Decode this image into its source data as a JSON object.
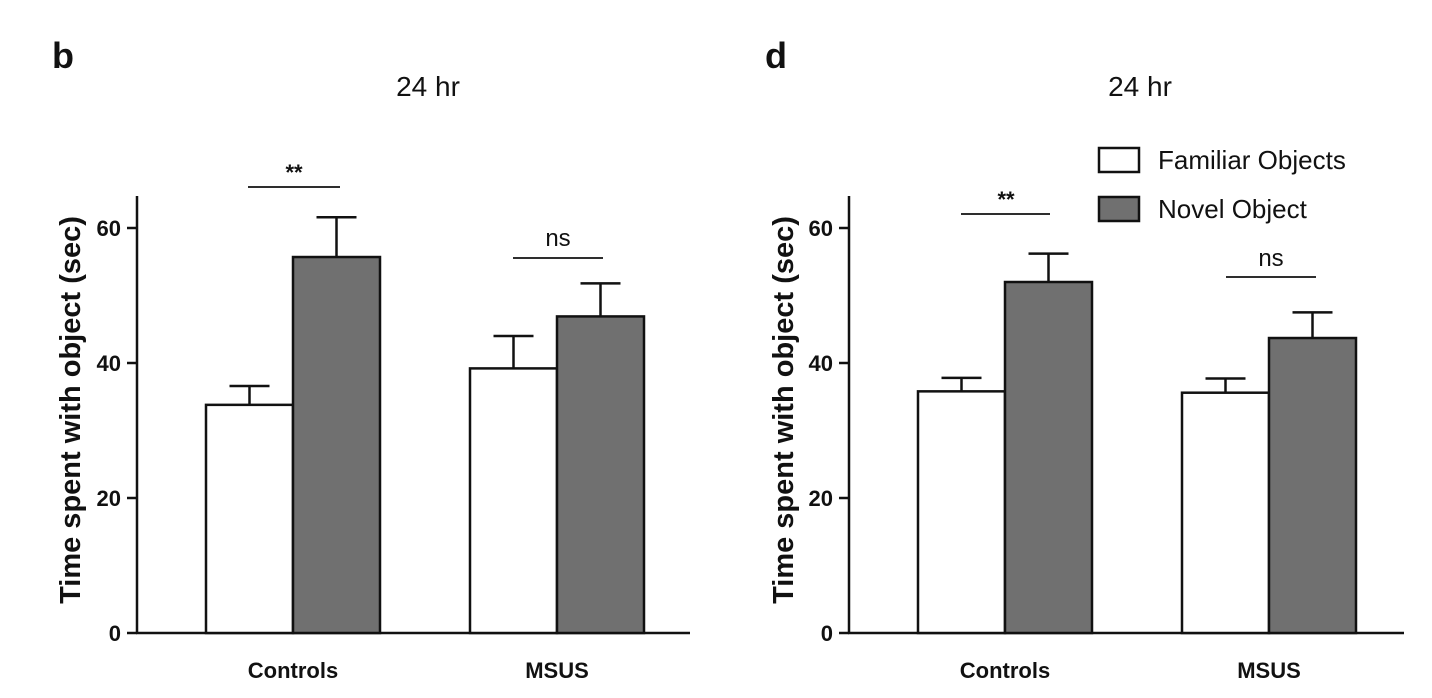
{
  "legend": {
    "entries": [
      {
        "label": "Familiar Objects",
        "color": "#ffffff"
      },
      {
        "label": "Novel Object",
        "color": "#707070"
      }
    ]
  },
  "chart_data": [
    {
      "panel": "b",
      "type": "bar",
      "title": "24 hr",
      "ylabel": "Time spent with object (sec)",
      "xlabel": "",
      "ylim": [
        0,
        65
      ],
      "yticks": [
        0,
        20,
        40,
        60
      ],
      "categories": [
        "Controls",
        "MSUS"
      ],
      "series": [
        {
          "name": "Familiar Objects",
          "color": "#ffffff",
          "values": [
            33.8,
            39.2
          ],
          "error": [
            2.8,
            4.8
          ]
        },
        {
          "name": "Novel Object",
          "color": "#707070",
          "values": [
            55.7,
            46.9
          ],
          "error": [
            5.9,
            4.9
          ]
        }
      ],
      "annotations": [
        "**",
        "ns"
      ]
    },
    {
      "panel": "d",
      "type": "bar",
      "title": "24 hr",
      "ylabel": "Time spent with object (sec)",
      "xlabel": "",
      "ylim": [
        0,
        65
      ],
      "yticks": [
        0,
        20,
        40,
        60
      ],
      "categories": [
        "Controls",
        "MSUS"
      ],
      "series": [
        {
          "name": "Familiar Objects",
          "color": "#ffffff",
          "values": [
            35.8,
            35.6
          ],
          "error": [
            2.0,
            2.1
          ]
        },
        {
          "name": "Novel Object",
          "color": "#707070",
          "values": [
            52.0,
            43.7
          ],
          "error": [
            4.2,
            3.8
          ]
        }
      ],
      "annotations": [
        "**",
        "ns"
      ]
    }
  ]
}
